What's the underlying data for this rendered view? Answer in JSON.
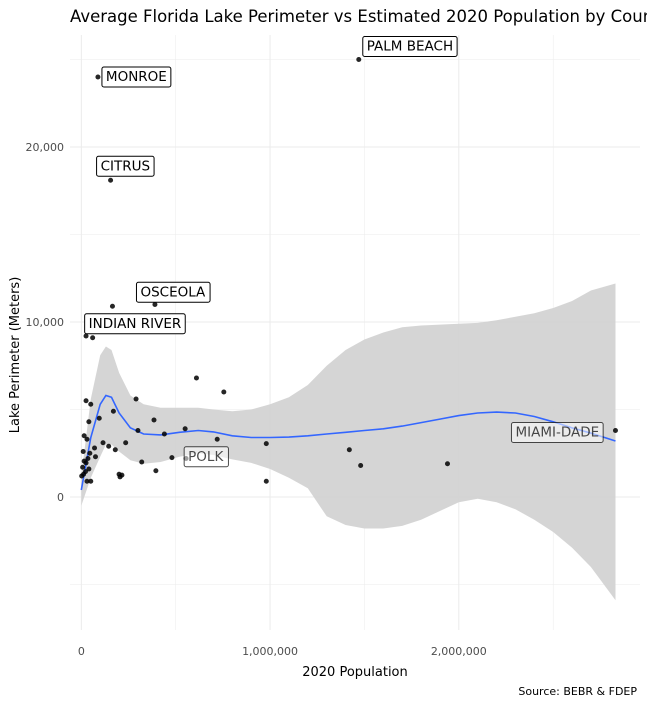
{
  "chart_data": {
    "type": "scatter",
    "title": "Average Florida Lake Perimeter vs Estimated 2020 Population by County",
    "xlabel": "2020 Population",
    "ylabel": "Lake Perimeter (Meters)",
    "caption": "Source: BEBR & FDEP",
    "xlim": [
      -60000,
      2960000
    ],
    "ylim": [
      -7600,
      26400
    ],
    "x_ticks": [
      {
        "value": 0,
        "label": "0"
      },
      {
        "value": 1000000,
        "label": "1,000,000"
      },
      {
        "value": 2000000,
        "label": "2,000,000"
      }
    ],
    "y_ticks": [
      {
        "value": 0,
        "label": "0"
      },
      {
        "value": 10000,
        "label": "10,000"
      },
      {
        "value": 20000,
        "label": "20,000"
      }
    ],
    "grid": true,
    "points": [
      {
        "x": 88000,
        "y": 24000,
        "label": "MONROE"
      },
      {
        "x": 1470000,
        "y": 25000,
        "label": "PALM BEACH"
      },
      {
        "x": 155000,
        "y": 18100,
        "label": "CITRUS"
      },
      {
        "x": 165000,
        "y": 10900,
        "label": "OSCEOLA"
      },
      {
        "x": 390000,
        "y": 11000
      },
      {
        "x": 25000,
        "y": 9200
      },
      {
        "x": 60000,
        "y": 9100,
        "label": "INDIAN RIVER"
      },
      {
        "x": 610000,
        "y": 6800
      },
      {
        "x": 755000,
        "y": 6000
      },
      {
        "x": 290000,
        "y": 5600
      },
      {
        "x": 25000,
        "y": 5500
      },
      {
        "x": 50000,
        "y": 5300
      },
      {
        "x": 170000,
        "y": 4900
      },
      {
        "x": 95000,
        "y": 4500
      },
      {
        "x": 385000,
        "y": 4400
      },
      {
        "x": 40000,
        "y": 4300
      },
      {
        "x": 550000,
        "y": 3900
      },
      {
        "x": 300000,
        "y": 3800
      },
      {
        "x": 2830000,
        "y": 3800,
        "label": "MIAMI-DADE"
      },
      {
        "x": 15000,
        "y": 3500
      },
      {
        "x": 440000,
        "y": 3600
      },
      {
        "x": 720000,
        "y": 3300
      },
      {
        "x": 30000,
        "y": 3300
      },
      {
        "x": 115000,
        "y": 3100
      },
      {
        "x": 235000,
        "y": 3100
      },
      {
        "x": 980000,
        "y": 3050
      },
      {
        "x": 145000,
        "y": 2900
      },
      {
        "x": 70000,
        "y": 2800
      },
      {
        "x": 180000,
        "y": 2700
      },
      {
        "x": 10000,
        "y": 2600
      },
      {
        "x": 1420000,
        "y": 2700
      },
      {
        "x": 45000,
        "y": 2500
      },
      {
        "x": 75000,
        "y": 2300
      },
      {
        "x": 35000,
        "y": 2200
      },
      {
        "x": 555000,
        "y": 2200
      },
      {
        "x": 480000,
        "y": 2250
      },
      {
        "x": 320000,
        "y": 2000
      },
      {
        "x": 15000,
        "y": 2050
      },
      {
        "x": 25000,
        "y": 1950
      },
      {
        "x": 1480000,
        "y": 1800
      },
      {
        "x": 1940000,
        "y": 1900
      },
      {
        "x": 7000,
        "y": 1700
      },
      {
        "x": 40000,
        "y": 1600
      },
      {
        "x": 22000,
        "y": 1450
      },
      {
        "x": 395000,
        "y": 1500
      },
      {
        "x": 12000,
        "y": 1300
      },
      {
        "x": 200000,
        "y": 1300
      },
      {
        "x": 215000,
        "y": 1250
      },
      {
        "x": 205000,
        "y": 1150
      },
      {
        "x": 2000,
        "y": 1200
      },
      {
        "x": 30000,
        "y": 900
      },
      {
        "x": 50000,
        "y": 900
      },
      {
        "x": 980000,
        "y": 900
      }
    ],
    "labels_only": [
      {
        "text": "POLK",
        "x": 725000,
        "y": 2300
      }
    ],
    "smooth": {
      "method": "loess",
      "color": "#3366ff",
      "ribbon_color": "#d3d3d3",
      "x": [
        0,
        50000,
        100000,
        130000,
        160000,
        200000,
        260000,
        330000,
        420000,
        520000,
        620000,
        700000,
        800000,
        900000,
        1000000,
        1100000,
        1200000,
        1300000,
        1400000,
        1500000,
        1600000,
        1700000,
        1800000,
        1900000,
        2000000,
        2100000,
        2200000,
        2300000,
        2400000,
        2500000,
        2600000,
        2700000,
        2830000
      ],
      "y": [
        400,
        3400,
        5300,
        5800,
        5700,
        4800,
        3950,
        3600,
        3550,
        3700,
        3800,
        3720,
        3500,
        3400,
        3400,
        3420,
        3500,
        3600,
        3700,
        3800,
        3900,
        4050,
        4250,
        4450,
        4650,
        4800,
        4850,
        4800,
        4600,
        4300,
        3950,
        3650,
        3200
      ],
      "lower": [
        -500,
        1100,
        2300,
        3000,
        3000,
        2600,
        2100,
        1900,
        2000,
        2300,
        2500,
        2400,
        2150,
        1950,
        1600,
        1100,
        500,
        -1100,
        -1600,
        -1800,
        -1800,
        -1650,
        -1300,
        -800,
        -300,
        -100,
        -300,
        -700,
        -1300,
        -2000,
        -2900,
        -4000,
        -5900
      ],
      "upper": [
        1200,
        5600,
        8100,
        8600,
        8400,
        7100,
        5800,
        5300,
        5100,
        5100,
        5100,
        5000,
        4900,
        5000,
        5300,
        5700,
        6400,
        7500,
        8400,
        9000,
        9400,
        9700,
        9800,
        9850,
        9900,
        9950,
        10100,
        10300,
        10500,
        10800,
        11200,
        11800,
        12200
      ]
    }
  }
}
